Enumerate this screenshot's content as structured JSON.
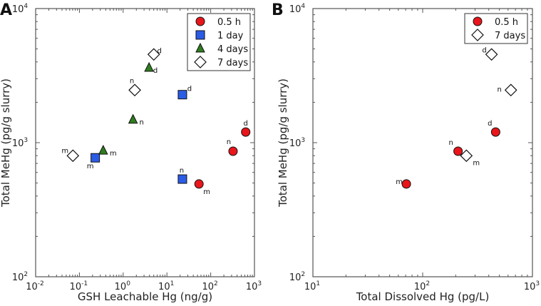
{
  "chart_data": [
    {
      "type": "scatter",
      "panel_label": "A",
      "xlabel": "GSH Leachable Hg (ng/g)",
      "ylabel": "Total MeHg (pg/g slurry)",
      "xscale": "log",
      "yscale": "log",
      "xlim": [
        0.01,
        1000
      ],
      "ylim": [
        100,
        10000
      ],
      "xticks": [
        {
          "base": "10",
          "exp": "-2"
        },
        {
          "base": "10",
          "exp": "-1"
        },
        {
          "base": "10",
          "exp": "0"
        },
        {
          "base": "10",
          "exp": "1"
        },
        {
          "base": "10",
          "exp": "2"
        },
        {
          "base": "10",
          "exp": "3"
        }
      ],
      "yticks": [
        {
          "base": "10",
          "exp": "2"
        },
        {
          "base": "10",
          "exp": "3"
        },
        {
          "base": "10",
          "exp": "4"
        }
      ],
      "legend_position": "top-right",
      "series": [
        {
          "name": "0.5 h",
          "marker": "circle",
          "color": "#e8161b",
          "points": [
            {
              "x": 631,
              "y": 1200,
              "label": "d"
            },
            {
              "x": 324,
              "y": 863,
              "label": "n"
            },
            {
              "x": 54,
              "y": 492,
              "label": "m"
            }
          ]
        },
        {
          "name": "1 day",
          "marker": "square",
          "color": "#2b5ce6",
          "points": [
            {
              "x": 22.6,
              "y": 2280,
              "label": "d"
            },
            {
              "x": 22.6,
              "y": 535,
              "label": "n"
            },
            {
              "x": 0.23,
              "y": 771,
              "label": "m"
            }
          ]
        },
        {
          "name": "4 days",
          "marker": "triangle",
          "color": "#2e7d1e",
          "points": [
            {
              "x": 3.9,
              "y": 3620,
              "label": "d"
            },
            {
              "x": 1.68,
              "y": 1485,
              "label": "n"
            },
            {
              "x": 0.35,
              "y": 873,
              "label": "m"
            }
          ]
        },
        {
          "name": "7 days",
          "marker": "diamond",
          "color": "#ffffff",
          "points": [
            {
              "x": 5.0,
              "y": 4550,
              "label": "d"
            },
            {
              "x": 1.84,
              "y": 2466,
              "label": "n"
            },
            {
              "x": 0.071,
              "y": 799,
              "label": "m"
            }
          ]
        }
      ]
    },
    {
      "type": "scatter",
      "panel_label": "B",
      "xlabel": "Total Dissolved Hg (pg/L)",
      "ylabel": "Total MeHg (pg/g slurry)",
      "xscale": "log",
      "yscale": "log",
      "xlim": [
        10,
        1000
      ],
      "ylim": [
        100,
        10000
      ],
      "xticks": [
        {
          "base": "10",
          "exp": "1"
        },
        {
          "base": "10",
          "exp": "2"
        },
        {
          "base": "10",
          "exp": "3"
        }
      ],
      "yticks": [
        {
          "base": "10",
          "exp": "2"
        },
        {
          "base": "10",
          "exp": "3"
        },
        {
          "base": "10",
          "exp": "4"
        }
      ],
      "legend_position": "top-right",
      "series": [
        {
          "name": "0.5 h",
          "marker": "circle",
          "color": "#e8161b",
          "points": [
            {
              "x": 462,
              "y": 1200,
              "label": "d"
            },
            {
              "x": 210,
              "y": 863,
              "label": "n"
            },
            {
              "x": 71,
              "y": 492,
              "label": "m"
            }
          ]
        },
        {
          "name": "7 days",
          "marker": "diamond",
          "color": "#ffffff",
          "points": [
            {
              "x": 424,
              "y": 4550,
              "label": "d"
            },
            {
              "x": 636,
              "y": 2466,
              "label": "n"
            },
            {
              "x": 250,
              "y": 799,
              "label": "m"
            }
          ]
        }
      ]
    }
  ]
}
